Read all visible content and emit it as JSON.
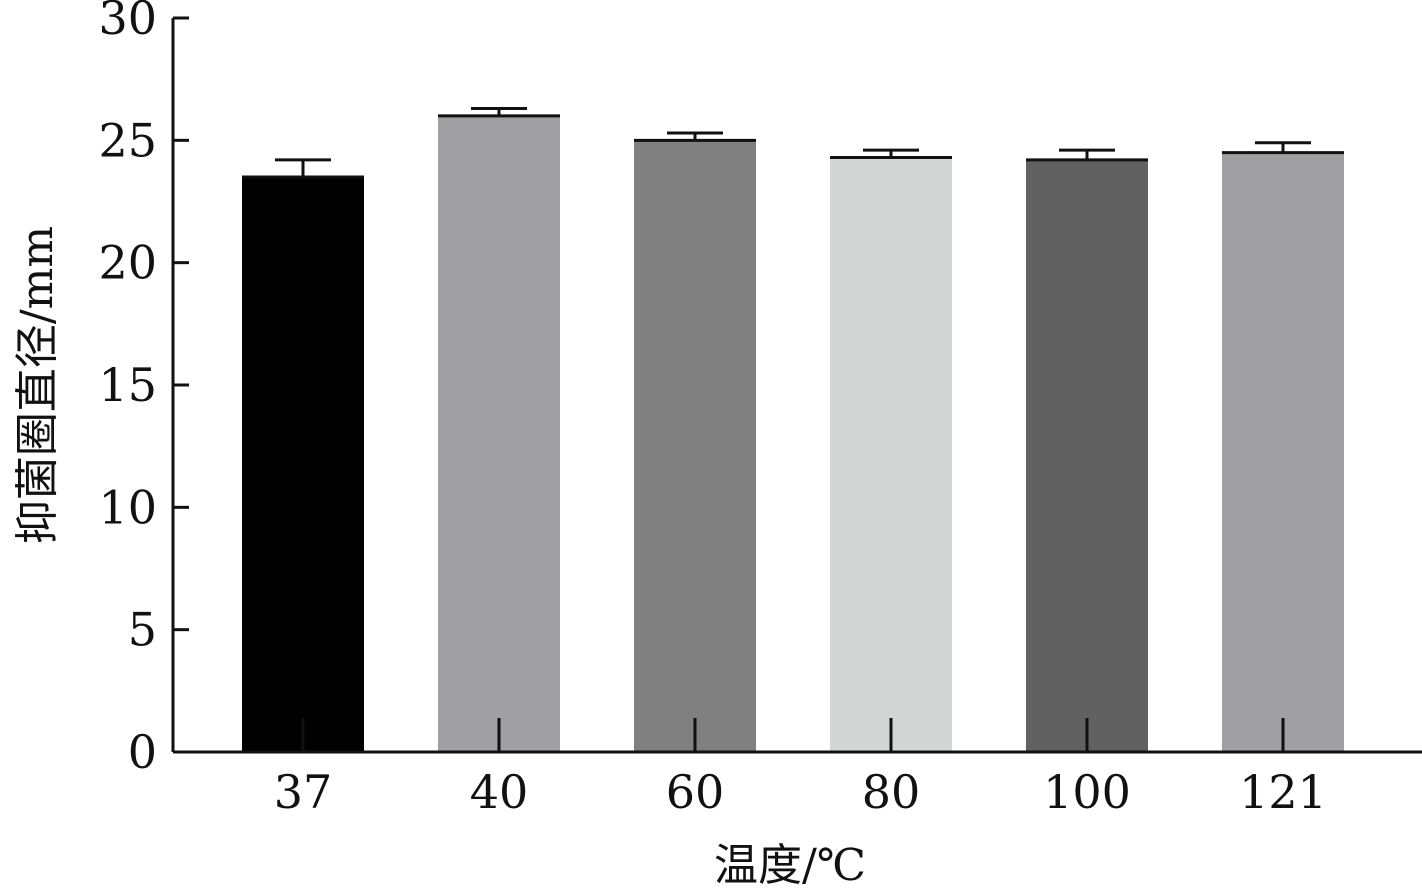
{
  "chart_data": {
    "type": "bar",
    "categories": [
      "37",
      "40",
      "60",
      "80",
      "100",
      "121"
    ],
    "values": [
      23.5,
      26.0,
      25.0,
      24.3,
      24.2,
      24.5
    ],
    "errors": [
      0.7,
      0.3,
      0.3,
      0.3,
      0.4,
      0.4
    ],
    "bar_colors": [
      "#000000",
      "#a0a0a3",
      "#808080",
      "#d4d5d5",
      "#616161",
      "#a0a0a3"
    ],
    "xlabel": "温度/℃",
    "ylabel": "抑菌圈直径/mm",
    "ylim": [
      0,
      30
    ],
    "yticks": [
      0,
      5,
      10,
      15,
      20,
      25,
      30
    ],
    "grid": false
  }
}
